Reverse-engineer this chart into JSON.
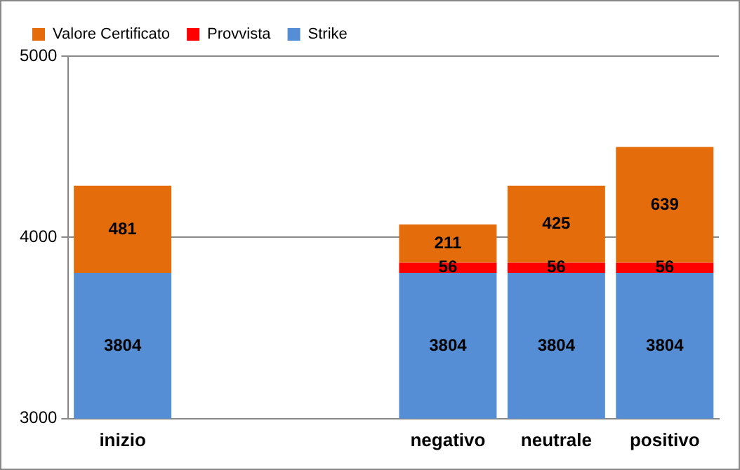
{
  "chart_data": {
    "type": "bar",
    "stacked": true,
    "categories": [
      "inizio",
      null,
      null,
      "negativo",
      "neutrale",
      "positivo"
    ],
    "series": [
      {
        "name": "Strike",
        "color": "#558ed5",
        "values": [
          3804,
          null,
          null,
          3804,
          3804,
          3804
        ]
      },
      {
        "name": "Provvista",
        "color": "#ff0000",
        "values": [
          null,
          null,
          null,
          56,
          56,
          56
        ],
        "base": [
          null,
          null,
          null,
          3804,
          3804,
          3804
        ]
      },
      {
        "name": "Valore Certificato",
        "color": "#e46c0a",
        "values": [
          481,
          null,
          null,
          211,
          425,
          639
        ],
        "base": [
          3804,
          null,
          null,
          3860,
          3860,
          3860
        ]
      }
    ],
    "ylim": [
      3000,
      5000
    ],
    "yticks": [
      3000,
      4000,
      5000
    ],
    "grid": "y",
    "legend": "top left",
    "data_labels": true
  }
}
